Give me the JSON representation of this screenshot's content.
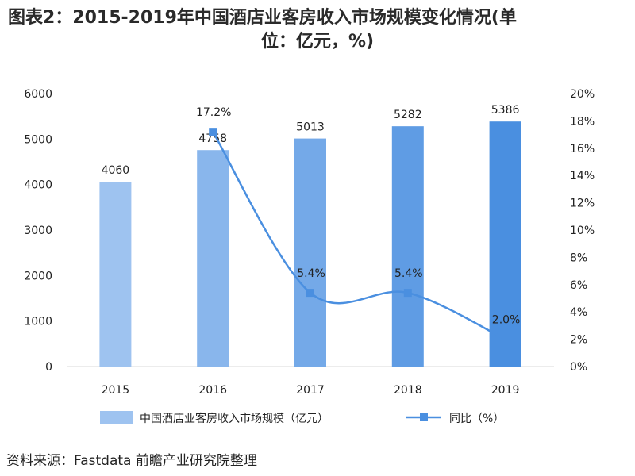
{
  "title_line1": "图表2：2015-2019年中国酒店业客房收入市场规模变化情况(单",
  "title_line2": "位：亿元，%)",
  "source": "资料来源：Fastdata  前瞻产业研究院整理",
  "colors": {
    "bar_light": "#9ec3f0",
    "bar_dark": "#4a8fe0",
    "line": "#4a8fe0",
    "axis": "#d9d9d9"
  },
  "chart_data": {
    "type": "bar",
    "categories": [
      "2015",
      "2016",
      "2017",
      "2018",
      "2019"
    ],
    "series": [
      {
        "name": "中国酒店业客房收入市场规模（亿元）",
        "type": "bar",
        "axis": "left",
        "values": [
          4060,
          4758,
          5013,
          5282,
          5386
        ],
        "labels": [
          "4060",
          "4758",
          "5013",
          "5282",
          "5386"
        ]
      },
      {
        "name": "同比（%）",
        "type": "line",
        "axis": "right",
        "values": [
          null,
          17.2,
          5.4,
          5.4,
          2.0
        ],
        "labels": [
          "",
          "17.2%",
          "5.4%",
          "5.4%",
          "2.0%"
        ]
      }
    ],
    "y_left": {
      "min": 0,
      "max": 6000,
      "ticks": [
        "0",
        "1000",
        "2000",
        "3000",
        "4000",
        "5000",
        "6000"
      ]
    },
    "y_right": {
      "min": 0,
      "max": 20,
      "ticks": [
        "0%",
        "2%",
        "4%",
        "6%",
        "8%",
        "10%",
        "12%",
        "14%",
        "16%",
        "18%",
        "20%"
      ]
    },
    "grid": false,
    "legend_position": "bottom"
  }
}
